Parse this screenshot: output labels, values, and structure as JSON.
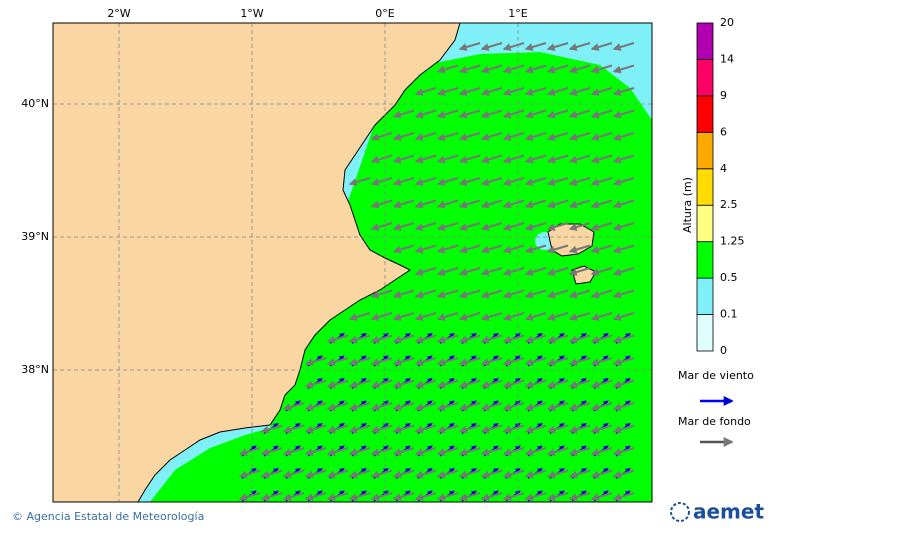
{
  "map": {
    "x_labels": [
      "2°W",
      "1°W",
      "0°E",
      "1°E"
    ],
    "y_labels": [
      "40°N",
      "39°N",
      "38°N"
    ],
    "colorbar": {
      "title": "Altura (m)",
      "ticks": [
        0,
        0.1,
        0.5,
        1.25,
        2.5,
        4,
        6,
        9,
        14,
        20
      ],
      "colors": [
        "#e0ffff",
        "#80f0f8",
        "#00ff00",
        "#ffff80",
        "#ffdd00",
        "#ffaa00",
        "#ff0000",
        "#ff0066",
        "#b000b0"
      ]
    },
    "legend": {
      "wind_sea": "Mar de viento",
      "swell": "Mar de fondo"
    },
    "footer": {
      "credit": "© Agencia Estatal de Meteorología",
      "logo": "aemet"
    }
  }
}
